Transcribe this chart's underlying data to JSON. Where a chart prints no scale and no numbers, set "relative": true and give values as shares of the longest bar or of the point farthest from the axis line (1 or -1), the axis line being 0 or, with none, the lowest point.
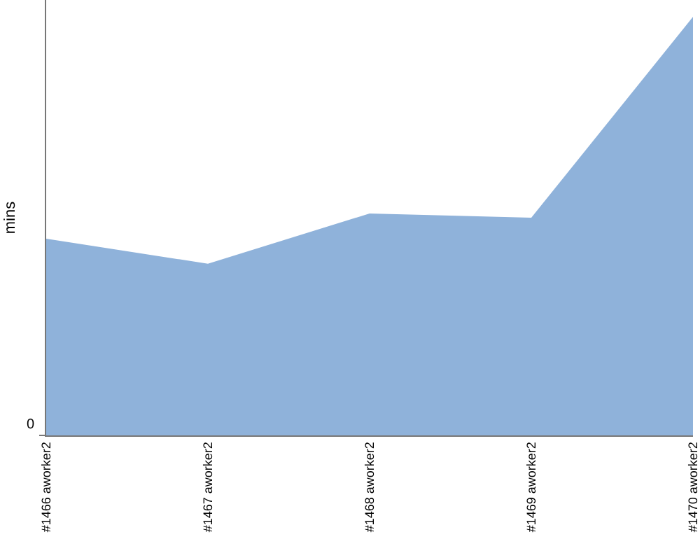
{
  "chart_data": {
    "type": "area",
    "ylabel": "mins",
    "relative": true,
    "categories": [
      "#1466 aworker2",
      "#1467 aworker2",
      "#1468 aworker2",
      "#1469 aworker2",
      "#1470 aworker2"
    ],
    "series": [
      {
        "color": "#8fb2da",
        "values": [
          0.47,
          0.41,
          0.53,
          0.52,
          1
        ]
      }
    ],
    "annotations": [
      "0"
    ]
  }
}
